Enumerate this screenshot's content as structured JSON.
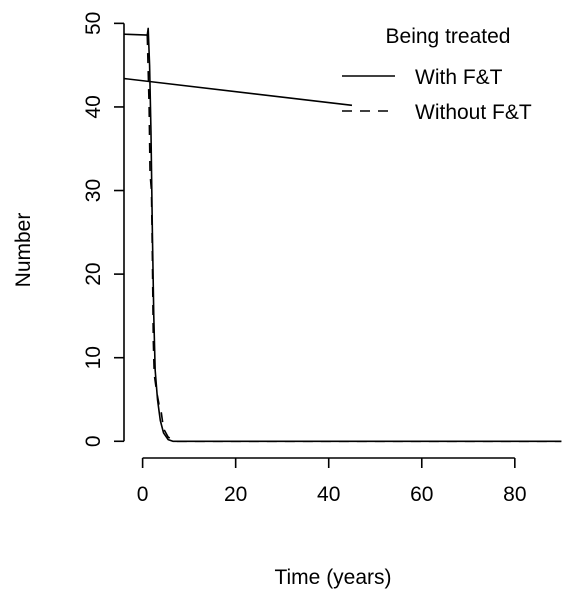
{
  "chart_data": {
    "type": "line",
    "title": "",
    "xlabel": "Time (years)",
    "ylabel": "Number",
    "xlim": [
      -4,
      91
    ],
    "ylim": [
      -2,
      51
    ],
    "xticks": [
      0,
      20,
      40,
      60,
      80
    ],
    "yticks": [
      0,
      10,
      20,
      30,
      40,
      50
    ],
    "grid": false,
    "legend": {
      "title": "Being treated",
      "position": "top-right",
      "entries": [
        {
          "label": "With F&T",
          "dash": "solid"
        },
        {
          "label": "Without F&T",
          "dash": "dashed"
        }
      ]
    },
    "series": [
      {
        "name": "With F&T",
        "dash": "solid",
        "points": [
          [
            -4,
            48.7
          ],
          [
            1,
            48.6
          ],
          [
            1.2,
            49.4
          ],
          [
            1.5,
            45
          ],
          [
            1.8,
            37
          ],
          [
            2.1,
            25
          ],
          [
            2.4,
            15
          ],
          [
            2.7,
            8.5
          ],
          [
            3.2,
            5
          ],
          [
            3.8,
            2.5
          ],
          [
            4.5,
            1
          ],
          [
            5.5,
            0.2
          ],
          [
            6.5,
            0
          ],
          [
            20,
            0
          ],
          [
            40,
            0
          ],
          [
            60,
            0
          ],
          [
            80,
            0
          ],
          [
            90,
            0
          ]
        ]
      },
      {
        "name": "Without F&T",
        "dash": "dashed",
        "points": [
          [
            1,
            48.6
          ],
          [
            1.4,
            40
          ],
          [
            1.6,
            32
          ],
          [
            1.9,
            30
          ],
          [
            2.1,
            22
          ],
          [
            2.3,
            12
          ],
          [
            2.5,
            8
          ],
          [
            3,
            6
          ],
          [
            3.5,
            4.5
          ],
          [
            4,
            3.5
          ],
          [
            4.5,
            1.5
          ],
          [
            5.5,
            0.5
          ],
          [
            7,
            0
          ],
          [
            20,
            0
          ],
          [
            40,
            0
          ],
          [
            60,
            0
          ],
          [
            80,
            0
          ],
          [
            90,
            0
          ]
        ]
      },
      {
        "name": "",
        "dash": "solid",
        "points": [
          [
            -4,
            43.4
          ],
          [
            45,
            40.2
          ]
        ]
      }
    ]
  }
}
